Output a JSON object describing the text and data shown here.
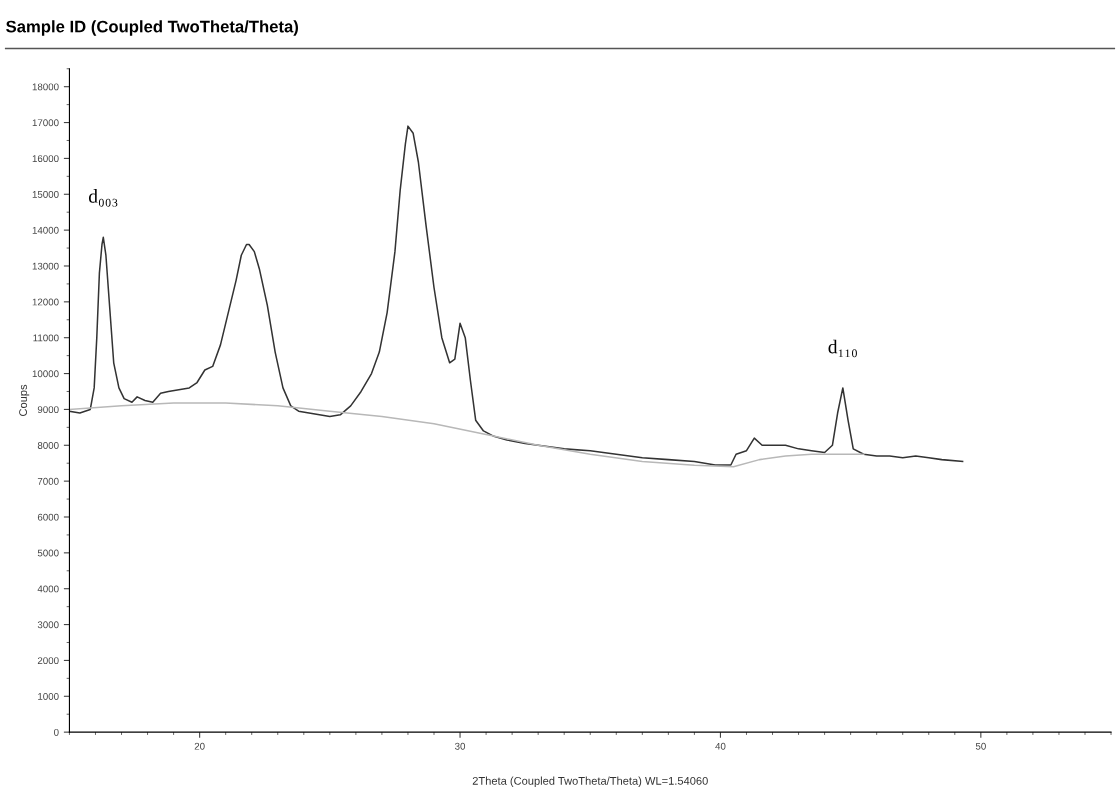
{
  "chart_data": {
    "type": "line",
    "title": "Sample ID (Coupled TwoTheta/Theta)",
    "xlabel": "2Theta (Coupled TwoTheta/Theta) WL=1.54060",
    "ylabel": "Coups",
    "xlim": [
      15,
      55
    ],
    "xticks": [
      20,
      30,
      40,
      50
    ],
    "ylim": [
      0,
      18500
    ],
    "yticks": [
      0,
      1000,
      2000,
      3000,
      4000,
      5000,
      6000,
      7000,
      8000,
      9000,
      10000,
      11000,
      12000,
      13000,
      14000,
      15000,
      16000,
      17000,
      18000
    ],
    "grid": false,
    "marker": "none",
    "line_style": "solid",
    "annotations": [
      {
        "text": "d₀₀₃",
        "x": 16.3,
        "y": 13800
      },
      {
        "text": "d₁₁₀",
        "x": 44.7,
        "y": 9600
      }
    ],
    "series": [
      {
        "color": "#333333",
        "x": [
          15.0,
          15.4,
          15.8,
          15.95,
          16.05,
          16.15,
          16.25,
          16.3,
          16.4,
          16.55,
          16.7,
          16.9,
          17.1,
          17.4,
          17.6,
          17.9,
          18.2,
          18.5,
          18.8,
          19.2,
          19.6,
          19.9,
          20.2,
          20.5,
          20.8,
          21.1,
          21.4,
          21.6,
          21.8,
          21.9,
          22.1,
          22.3,
          22.6,
          22.9,
          23.2,
          23.5,
          23.8,
          24.2,
          24.6,
          25.0,
          25.4,
          25.8,
          26.2,
          26.6,
          26.9,
          27.2,
          27.5,
          27.7,
          27.9,
          28.0,
          28.2,
          28.4,
          28.7,
          29.0,
          29.3,
          29.6,
          29.8,
          30.0,
          30.2,
          30.4,
          30.6,
          30.9,
          31.3,
          31.8,
          32.5,
          33.0,
          33.5,
          34.0,
          35.0,
          36.0,
          37.0,
          38.0,
          39.0,
          39.8,
          40.4,
          40.6,
          41.0,
          41.3,
          41.6,
          42.0,
          42.5,
          43.0,
          43.5,
          44.0,
          44.3,
          44.5,
          44.7,
          44.9,
          45.1,
          45.5,
          46.0,
          46.5,
          47.0,
          47.5,
          48.0,
          48.5,
          49.3
        ],
        "values": [
          8950,
          8900,
          9000,
          9600,
          11000,
          12800,
          13600,
          13800,
          13300,
          11800,
          10300,
          9600,
          9300,
          9200,
          9350,
          9250,
          9200,
          9450,
          9500,
          9550,
          9600,
          9750,
          10100,
          10200,
          10800,
          11700,
          12600,
          13300,
          13600,
          13600,
          13400,
          12900,
          11900,
          10600,
          9600,
          9100,
          8950,
          8900,
          8850,
          8800,
          8850,
          9100,
          9500,
          10000,
          10600,
          11700,
          13400,
          15100,
          16400,
          16900,
          16700,
          15900,
          14100,
          12400,
          11000,
          10300,
          10400,
          11400,
          11000,
          9800,
          8700,
          8400,
          8250,
          8150,
          8050,
          8000,
          7950,
          7900,
          7850,
          7750,
          7650,
          7600,
          7550,
          7450,
          7450,
          7750,
          7850,
          8200,
          8000,
          8000,
          8000,
          7900,
          7850,
          7800,
          8000,
          8900,
          9600,
          8700,
          7900,
          7750,
          7700,
          7700,
          7650,
          7700,
          7650,
          7600,
          7550
        ]
      },
      {
        "color": "#b8b8b8",
        "x": [
          15.0,
          17.0,
          19.0,
          21.0,
          23.0,
          25.0,
          27.0,
          29.0,
          31.0,
          33.0,
          35.0,
          37.0,
          39.0,
          40.5,
          41.5,
          42.5,
          43.5,
          45.5
        ],
        "values": [
          9000,
          9100,
          9180,
          9180,
          9100,
          8950,
          8800,
          8600,
          8300,
          8000,
          7750,
          7550,
          7440,
          7400,
          7600,
          7700,
          7750,
          7750
        ]
      }
    ]
  }
}
